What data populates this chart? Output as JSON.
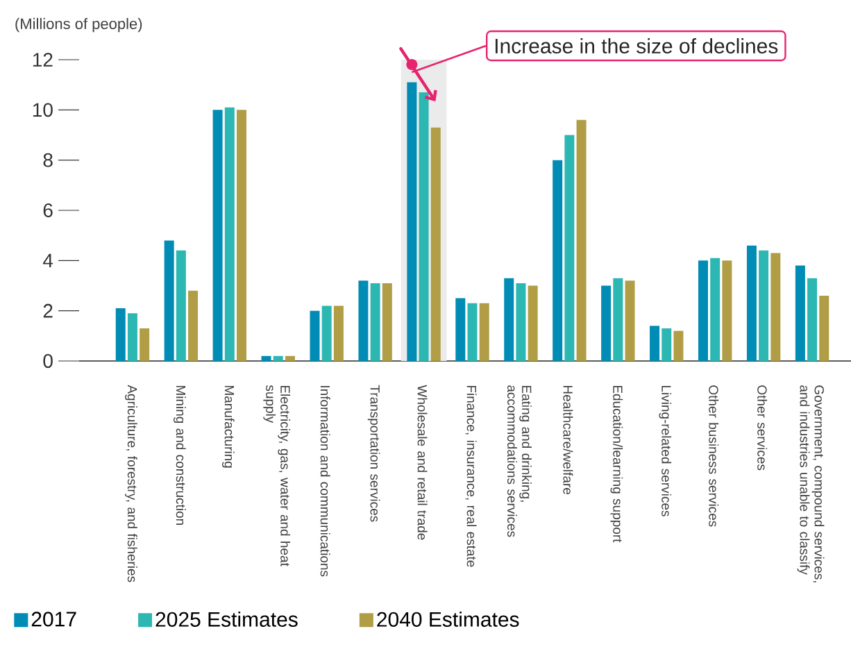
{
  "chart_data": {
    "type": "bar",
    "ylabel": "(Millions of people)",
    "categories": [
      "Agriculture, forestry, and fisheries",
      "Mining and construction",
      "Manufacturing",
      "Electricity, gas, water and heat supply",
      "Information and communications",
      "Transportation services",
      "Wholesale and retail trade",
      "Finance, insurance, real estate",
      "Eating and drinking, accommodations services",
      "Healthcare/welfare",
      "Education/learning support",
      "Living-related services",
      "Other business services",
      "Other services",
      "Government, compound services, and industries unable to classify"
    ],
    "series": [
      {
        "name": "2017",
        "color": "#008cb4",
        "values": [
          2.1,
          4.8,
          10.0,
          0.2,
          2.0,
          3.2,
          11.1,
          2.5,
          3.3,
          8.0,
          3.0,
          1.4,
          4.0,
          4.6,
          3.8
        ]
      },
      {
        "name": "2025 Estimates",
        "color": "#2db7b2",
        "values": [
          1.9,
          4.4,
          10.1,
          0.2,
          2.2,
          3.1,
          10.7,
          2.3,
          3.1,
          9.0,
          3.3,
          1.3,
          4.1,
          4.4,
          3.3
        ]
      },
      {
        "name": "2040 Estimates",
        "color": "#b09d45",
        "values": [
          1.3,
          2.8,
          10.0,
          0.2,
          2.2,
          3.1,
          9.3,
          2.3,
          3.0,
          9.6,
          3.2,
          1.2,
          4.0,
          4.3,
          2.6
        ]
      }
    ],
    "ylim": [
      0,
      12
    ],
    "yticks": [
      0,
      2,
      4,
      6,
      8,
      10,
      12
    ],
    "grid": false,
    "legend": "bottom",
    "bands": [
      {
        "axis": "x",
        "from": "Wholesale and retail trade",
        "to": "Wholesale and retail trade",
        "color": "#ebebeb"
      }
    ],
    "annotations": [
      "Increase in the size of declines"
    ]
  }
}
